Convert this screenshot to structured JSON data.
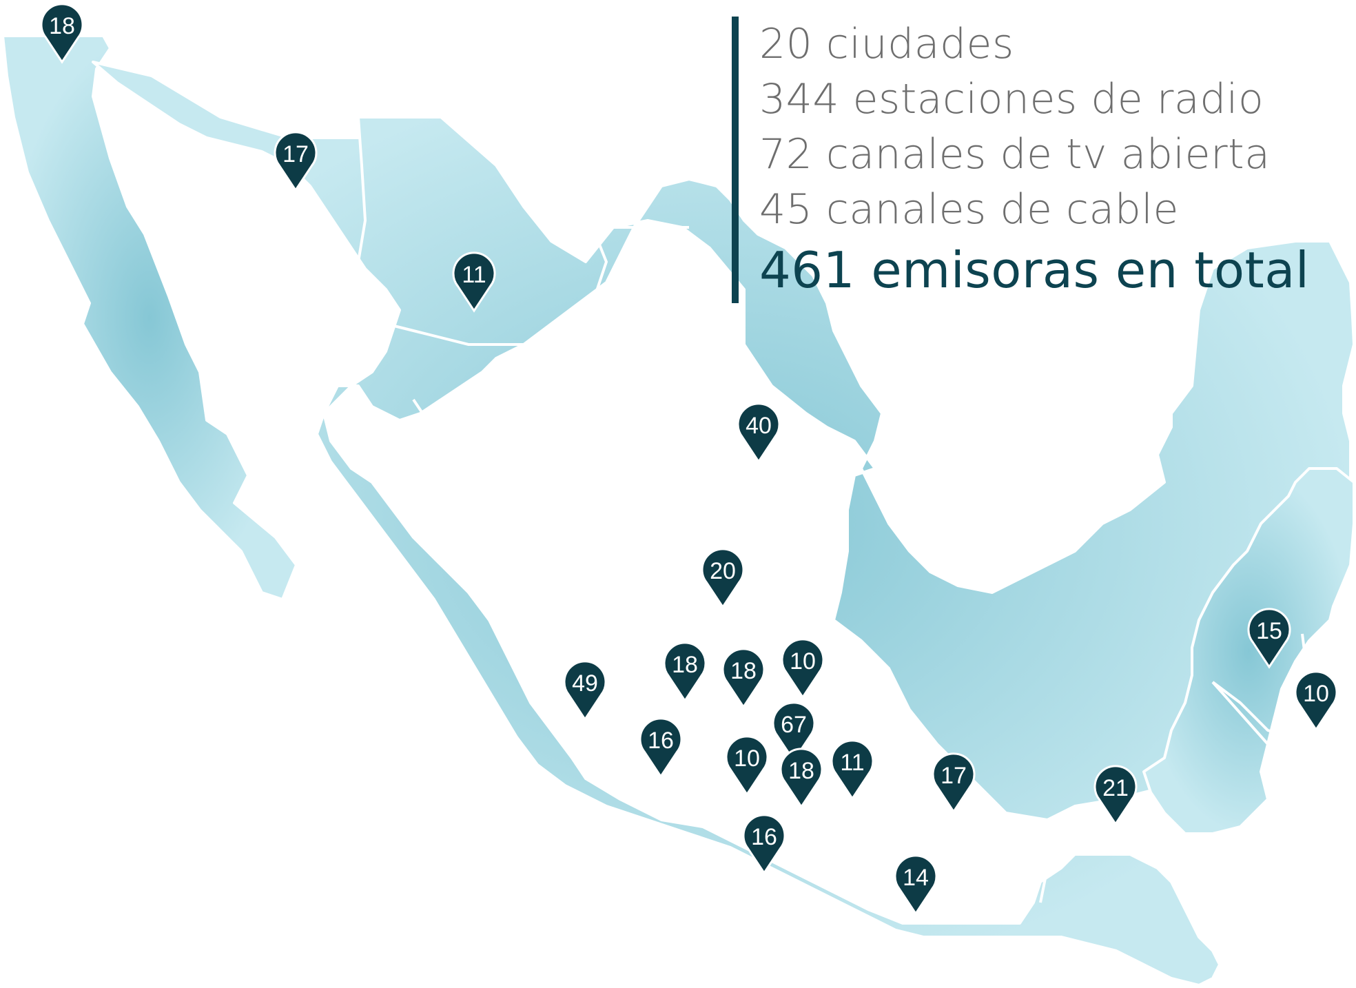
{
  "stats": {
    "cities": "20 ciudades",
    "radio": "344 estaciones de radio",
    "tv": "72 canales de tv abierta",
    "cable": "45 canales de cable",
    "total": "461 emisoras en total"
  },
  "colors": {
    "land": "#a9dbe5",
    "land_dark": "#7cc0cf",
    "border": "#ffffff",
    "pin": "#0d3b46",
    "accent": "#0d4350",
    "stat_text": "#6e6e6e"
  },
  "pins": [
    {
      "id": "tijuana",
      "label": "18"
    },
    {
      "id": "hermosillo",
      "label": "17"
    },
    {
      "id": "chihuahua",
      "label": "11"
    },
    {
      "id": "monterrey",
      "label": "40"
    },
    {
      "id": "san-luis-potosi",
      "label": "20"
    },
    {
      "id": "guadalajara",
      "label": "49"
    },
    {
      "id": "leon",
      "label": "18"
    },
    {
      "id": "queretaro",
      "label": "18"
    },
    {
      "id": "pachuca",
      "label": "10"
    },
    {
      "id": "morelia",
      "label": "16"
    },
    {
      "id": "ciudad-de-mexico",
      "label": "67"
    },
    {
      "id": "toluca",
      "label": "10"
    },
    {
      "id": "cuernavaca",
      "label": "18"
    },
    {
      "id": "puebla",
      "label": "11"
    },
    {
      "id": "veracruz",
      "label": "17"
    },
    {
      "id": "acapulco",
      "label": "16"
    },
    {
      "id": "oaxaca",
      "label": "14"
    },
    {
      "id": "villahermosa",
      "label": "21"
    },
    {
      "id": "merida",
      "label": "15"
    },
    {
      "id": "cancun",
      "label": "10"
    }
  ]
}
